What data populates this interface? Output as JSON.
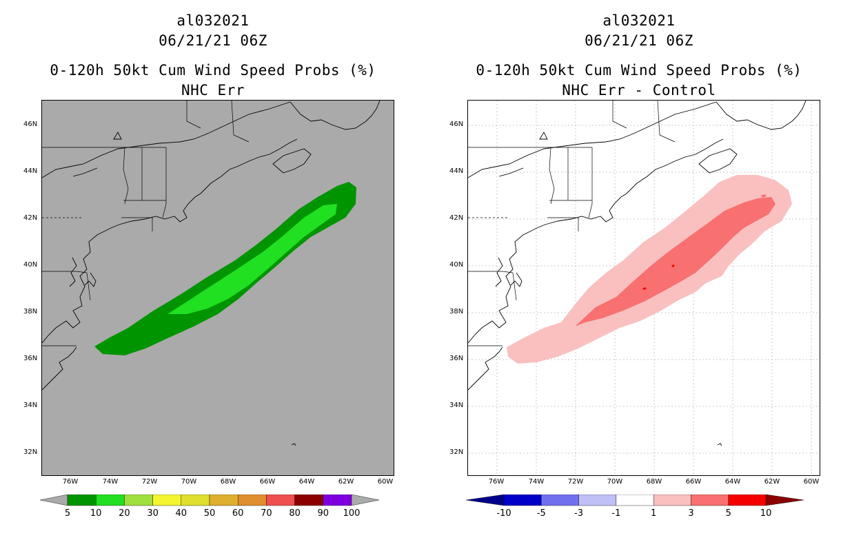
{
  "left": {
    "title_line1": "al032021",
    "title_line2": "06/21/21 06Z",
    "title_line3": "0-120h 50kt Cum Wind Speed Probs (%)",
    "title_line4": "NHC Err",
    "background_color": "#aaaaaa",
    "colorbar_labels": [
      "5",
      "10",
      "20",
      "30",
      "40",
      "50",
      "60",
      "70",
      "80",
      "90",
      "100"
    ],
    "colorbar_colors": [
      "#009400",
      "#21df21",
      "#9fdf3f",
      "#f5f52f",
      "#dfdf2f",
      "#dfaf2f",
      "#df8f2f",
      "#ef4f4f",
      "#8b0000",
      "#7f00df"
    ],
    "colorbar_end_color": "#aaaaaa"
  },
  "right": {
    "title_line1": "al032021",
    "title_line2": "06/21/21 06Z",
    "title_line3": "0-120h 50kt Cum Wind Speed Probs (%)",
    "title_line4": "NHC Err - Control",
    "background_color": "#ffffff",
    "colorbar_labels": [
      "-10",
      "-5",
      "-3",
      "-1",
      "1",
      "3",
      "5",
      "10"
    ],
    "colorbar_colors": [
      "#0000c8",
      "#7070ef",
      "#c0c0f7",
      "#ffffff",
      "#fac0c0",
      "#f97070",
      "#f50000"
    ],
    "colorbar_end_low": "#00008b",
    "colorbar_end_high": "#8b0000"
  },
  "axes": {
    "lat_labels": [
      "46N",
      "44N",
      "42N",
      "40N",
      "38N",
      "36N",
      "34N",
      "32N"
    ],
    "lon_labels": [
      "76W",
      "74W",
      "72W",
      "70W",
      "68W",
      "66W",
      "64W",
      "62W",
      "60W"
    ]
  },
  "legend_colors": {
    "green_dark": "#009400",
    "green_light": "#21df21",
    "pink_light": "#fac0c0",
    "pink_mid": "#f97070",
    "red": "#f50000"
  }
}
